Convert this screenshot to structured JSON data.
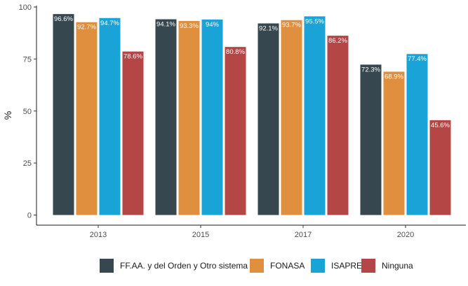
{
  "chart_data": {
    "type": "bar",
    "categories": [
      "2013",
      "2015",
      "2017",
      "2020"
    ],
    "series": [
      {
        "name": "FF.AA. y del Orden y Otro sistema",
        "color": "#37474f",
        "values": [
          96.6,
          94.1,
          92.1,
          72.3
        ],
        "labels": [
          "96.6%",
          "94.1%",
          "92.1%",
          "72.3%"
        ]
      },
      {
        "name": "FONASA",
        "color": "#e08f3f",
        "values": [
          92.7,
          93.3,
          93.7,
          68.9
        ],
        "labels": [
          "92.7%",
          "93.3%",
          "93.7%",
          "68.9%"
        ]
      },
      {
        "name": "ISAPRE",
        "color": "#1aa3d6",
        "values": [
          94.7,
          94.0,
          95.5,
          77.4
        ],
        "labels": [
          "94.7%",
          "94%",
          "95.5%",
          "77.4%"
        ]
      },
      {
        "name": "Ninguna",
        "color": "#b54646",
        "values": [
          78.6,
          80.8,
          86.2,
          45.6
        ],
        "labels": [
          "78.6%",
          "80.8%",
          "86.2%",
          "45.6%"
        ]
      }
    ],
    "xlabel": "",
    "ylabel": "%",
    "ylim": [
      0,
      100
    ],
    "yticks": [
      0,
      25,
      50,
      75,
      100
    ],
    "grid": false,
    "legend_position": "bottom"
  }
}
